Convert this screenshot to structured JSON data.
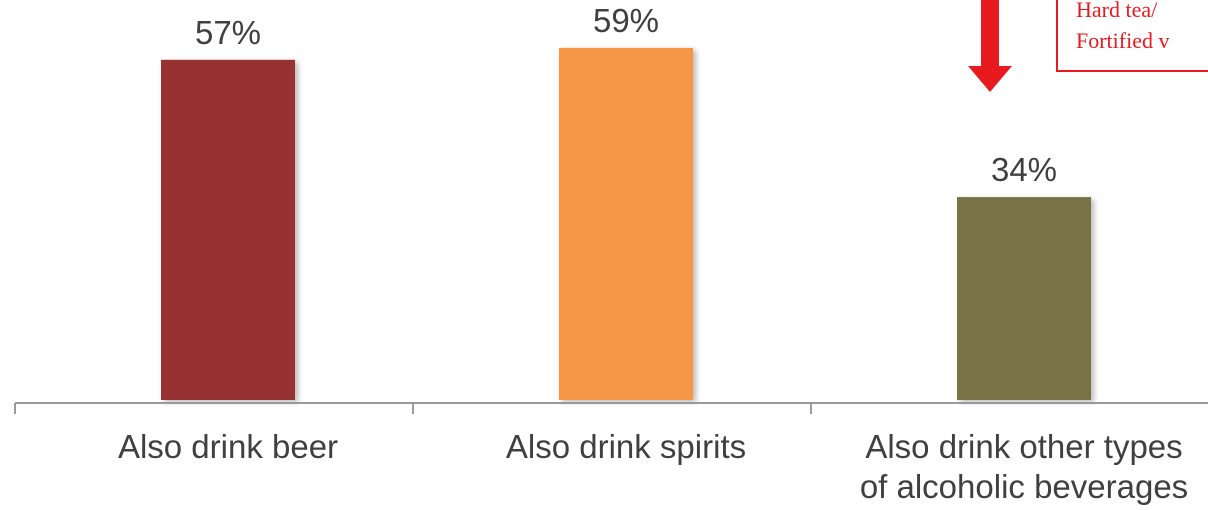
{
  "chart_data": {
    "type": "bar",
    "categories": [
      [
        "Also drink beer"
      ],
      [
        "Also drink spirits"
      ],
      [
        "Also drink other types",
        "of alcoholic beverages"
      ]
    ],
    "values": [
      57,
      59,
      34
    ],
    "value_labels": [
      "57%",
      "59%",
      "34%"
    ],
    "colors": [
      "#973131",
      "#f79646",
      "#7a7246"
    ],
    "title": "",
    "xlabel": "",
    "ylabel": "",
    "ylim": [
      0,
      62
    ],
    "grid": false,
    "legend": "none"
  },
  "callout": {
    "lines": [
      "Hard tea/",
      "Fortified v"
    ],
    "color": "#e8191f"
  },
  "arrow": {
    "direction": "down",
    "color": "#e8191f"
  }
}
